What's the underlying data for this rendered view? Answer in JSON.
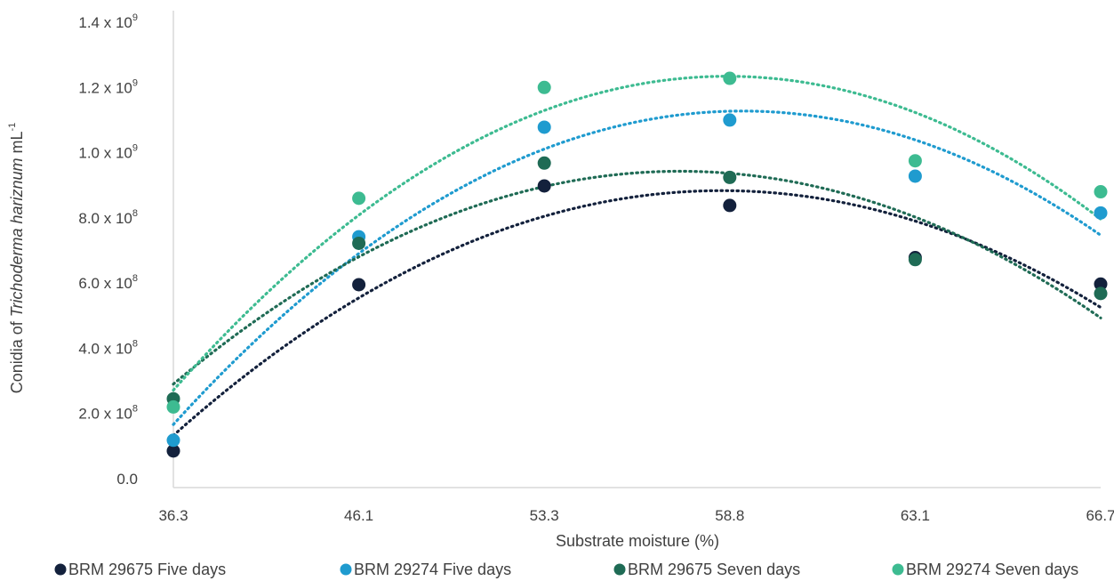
{
  "chart_data": {
    "type": "scatter",
    "title": "",
    "xlabel": "Substrate moisture (%)",
    "ylabel": {
      "prefix": "Conidia of ",
      "italic": "Trichoderma hariznum",
      "suffix": " mL",
      "exponent": "-1"
    },
    "categories": [
      "36.3",
      "46.1",
      "53.3",
      "58.8",
      "63.1",
      "66.7"
    ],
    "ylim": [
      0,
      1400000000
    ],
    "y_ticks": [
      {
        "value": 0,
        "base": "0.0",
        "exp": ""
      },
      {
        "value": 200000000,
        "base": "2.0 x 10",
        "exp": "8"
      },
      {
        "value": 400000000,
        "base": "4.0 x 10",
        "exp": "8"
      },
      {
        "value": 600000000,
        "base": "6.0 x 10",
        "exp": "8"
      },
      {
        "value": 800000000,
        "base": "8.0 x 10",
        "exp": "8"
      },
      {
        "value": 1000000000,
        "base": "1.0 x 10",
        "exp": "9"
      },
      {
        "value": 1200000000,
        "base": "1.2 x 10",
        "exp": "9"
      },
      {
        "value": 1400000000,
        "base": "1.4 x 10",
        "exp": "9"
      }
    ],
    "grid": false,
    "trendline": "polynomial (order 2), dotted",
    "legend_position": "bottom",
    "series": [
      {
        "name": "BRM 29675 Five days",
        "color": "#13213c",
        "values": [
          85000000,
          595000000,
          898000000,
          838000000,
          678000000,
          597000000
        ]
      },
      {
        "name": "BRM 29274 Five days",
        "color": "#1f9bcf",
        "values": [
          118000000,
          742000000,
          1078000000,
          1100000000,
          928000000,
          815000000
        ]
      },
      {
        "name": "BRM 29675 Seven days",
        "color": "#1f6b55",
        "values": [
          245000000,
          722000000,
          968000000,
          924000000,
          672000000,
          568000000
        ]
      },
      {
        "name": "BRM 29274 Seven days",
        "color": "#3dbb91",
        "values": [
          220000000,
          860000000,
          1200000000,
          1228000000,
          975000000,
          880000000
        ]
      }
    ]
  }
}
